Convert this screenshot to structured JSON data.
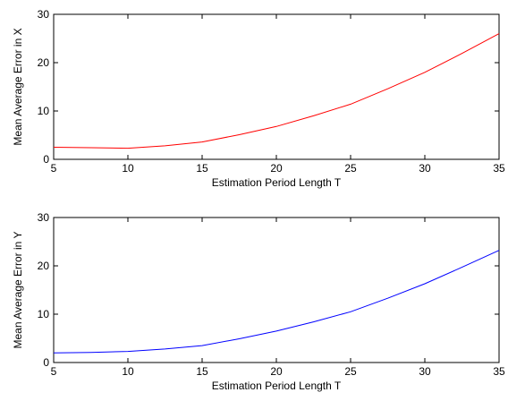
{
  "chart_data": [
    {
      "type": "line",
      "xlabel": "Estimation Period Length T",
      "ylabel": "Mean Average Error in X",
      "xlim": [
        5,
        35
      ],
      "ylim": [
        0,
        30
      ],
      "xticks": [
        5,
        10,
        15,
        20,
        25,
        30,
        35
      ],
      "yticks": [
        0,
        10,
        20,
        30
      ],
      "grid": false,
      "series": [
        {
          "color": "#ff0000",
          "x": [
            5,
            7.5,
            10,
            12.5,
            15,
            17.5,
            20,
            22.5,
            25,
            27.5,
            30,
            32.5,
            35
          ],
          "y": [
            2.5,
            2.4,
            2.3,
            2.8,
            3.6,
            5.1,
            6.8,
            9.0,
            11.4,
            14.6,
            18.0,
            21.9,
            26.0
          ]
        }
      ]
    },
    {
      "type": "line",
      "xlabel": "Estimation Period Length T",
      "ylabel": "Mean Average Error in Y",
      "xlim": [
        5,
        35
      ],
      "ylim": [
        0,
        30
      ],
      "xticks": [
        5,
        10,
        15,
        20,
        25,
        30,
        35
      ],
      "yticks": [
        0,
        10,
        20,
        30
      ],
      "grid": false,
      "series": [
        {
          "color": "#0000ff",
          "x": [
            5,
            7.5,
            10,
            12.5,
            15,
            17.5,
            20,
            22.5,
            25,
            27.5,
            30,
            32.5,
            35
          ],
          "y": [
            2.0,
            2.1,
            2.3,
            2.8,
            3.5,
            4.9,
            6.5,
            8.4,
            10.5,
            13.3,
            16.3,
            19.7,
            23.2
          ]
        }
      ]
    }
  ]
}
